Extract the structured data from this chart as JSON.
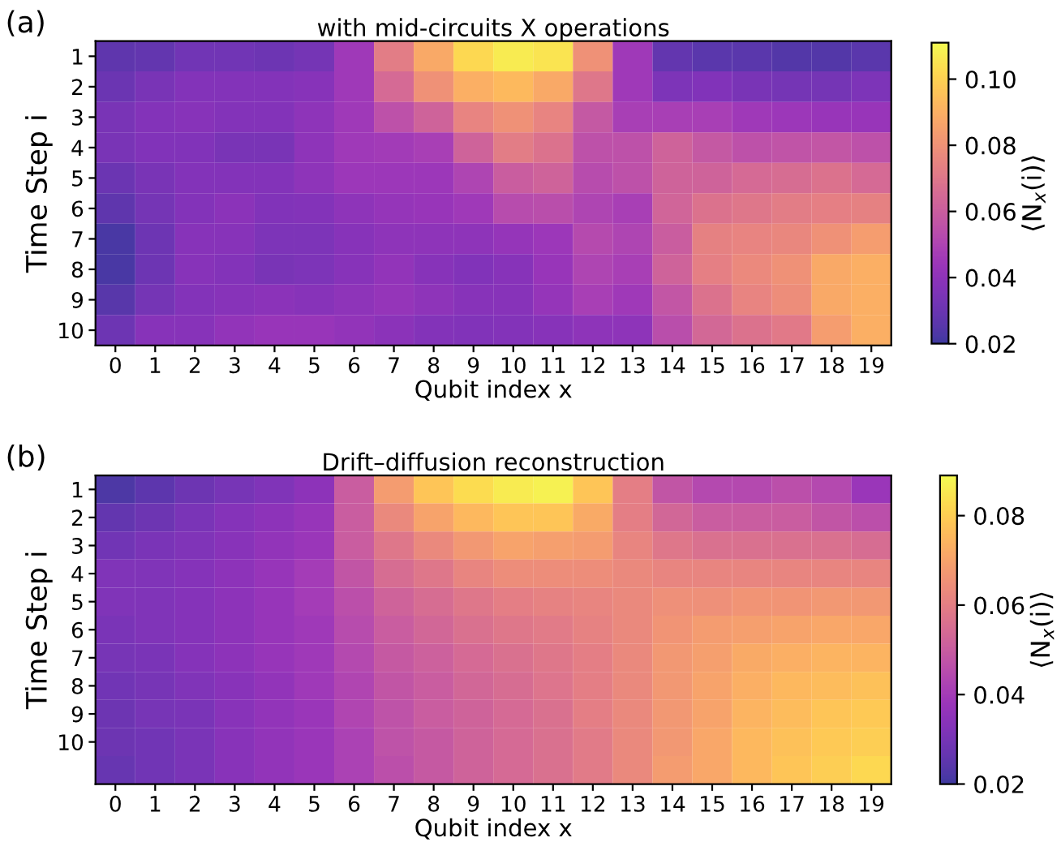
{
  "chart_data": [
    {
      "type": "heatmap",
      "title": "with mid-circuits X operations",
      "xlabel": "Qubit index x",
      "ylabel": "Time Step i",
      "clabel": "⟨N$_{x}$(i)⟩",
      "annotations": [
        "(a)"
      ],
      "categories": [
        "0",
        "1",
        "2",
        "3",
        "4",
        "5",
        "6",
        "7",
        "8",
        "9",
        "10",
        "11",
        "12",
        "13",
        "14",
        "15",
        "16",
        "17",
        "18",
        "19"
      ],
      "y_categories": [
        "1",
        "2",
        "3",
        "4",
        "5",
        "6",
        "7",
        "8",
        "9",
        "10"
      ],
      "clim": [
        0.02,
        0.111
      ],
      "cticks": [
        0.02,
        0.04,
        0.06,
        0.08,
        {
          "value": 0.1,
          "label": "0.10"
        }
      ],
      "cells": [
        [
          0.027,
          0.028,
          0.032,
          0.032,
          0.031,
          0.033,
          0.045,
          0.072,
          0.088,
          0.102,
          0.107,
          0.105,
          0.08,
          0.045,
          0.028,
          0.026,
          0.026,
          0.024,
          0.024,
          0.026
        ],
        [
          0.03,
          0.034,
          0.037,
          0.037,
          0.037,
          0.038,
          0.045,
          0.065,
          0.08,
          0.09,
          0.093,
          0.088,
          0.07,
          0.045,
          0.035,
          0.036,
          0.034,
          0.033,
          0.033,
          0.035
        ],
        [
          0.034,
          0.037,
          0.038,
          0.037,
          0.037,
          0.04,
          0.045,
          0.055,
          0.062,
          0.075,
          0.08,
          0.075,
          0.058,
          0.048,
          0.048,
          0.048,
          0.045,
          0.044,
          0.043,
          0.043
        ],
        [
          0.034,
          0.036,
          0.036,
          0.034,
          0.034,
          0.04,
          0.045,
          0.046,
          0.048,
          0.062,
          0.072,
          0.068,
          0.055,
          0.055,
          0.062,
          0.058,
          0.055,
          0.056,
          0.057,
          0.055
        ],
        [
          0.03,
          0.034,
          0.037,
          0.037,
          0.037,
          0.04,
          0.044,
          0.044,
          0.044,
          0.05,
          0.06,
          0.062,
          0.053,
          0.055,
          0.062,
          0.062,
          0.065,
          0.066,
          0.068,
          0.065
        ],
        [
          0.027,
          0.033,
          0.037,
          0.039,
          0.036,
          0.037,
          0.04,
          0.042,
          0.043,
          0.045,
          0.053,
          0.054,
          0.05,
          0.048,
          0.063,
          0.068,
          0.07,
          0.072,
          0.073,
          0.074
        ],
        [
          0.022,
          0.031,
          0.038,
          0.038,
          0.035,
          0.035,
          0.038,
          0.04,
          0.04,
          0.04,
          0.042,
          0.044,
          0.052,
          0.05,
          0.06,
          0.074,
          0.075,
          0.076,
          0.08,
          0.084
        ],
        [
          0.022,
          0.031,
          0.038,
          0.037,
          0.034,
          0.035,
          0.038,
          0.041,
          0.038,
          0.036,
          0.038,
          0.043,
          0.05,
          0.048,
          0.062,
          0.073,
          0.077,
          0.08,
          0.088,
          0.09
        ],
        [
          0.025,
          0.033,
          0.037,
          0.038,
          0.039,
          0.038,
          0.04,
          0.042,
          0.04,
          0.038,
          0.038,
          0.042,
          0.048,
          0.045,
          0.057,
          0.068,
          0.075,
          0.078,
          0.088,
          0.09
        ],
        [
          0.031,
          0.038,
          0.038,
          0.041,
          0.043,
          0.043,
          0.041,
          0.039,
          0.037,
          0.036,
          0.037,
          0.038,
          0.04,
          0.04,
          0.054,
          0.064,
          0.068,
          0.071,
          0.084,
          0.09
        ]
      ]
    },
    {
      "type": "heatmap",
      "title": "Drift–diffusion reconstruction",
      "xlabel": "Qubit index x",
      "ylabel": "Time Step i",
      "clabel": "⟨N$_{x}$(i)⟩",
      "annotations": [
        "(b)"
      ],
      "categories": [
        "0",
        "1",
        "2",
        "3",
        "4",
        "5",
        "6",
        "7",
        "8",
        "9",
        "10",
        "11",
        "12",
        "13",
        "14",
        "15",
        "16",
        "17",
        "18",
        "19"
      ],
      "y_categories": [
        "1",
        "2",
        "3",
        "4",
        "5",
        "6",
        "7",
        "8",
        "9",
        "10",
        null
      ],
      "clim": [
        0.02,
        0.089
      ],
      "cticks": [
        0.02,
        0.04,
        0.06,
        0.08
      ],
      "cells": [
        [
          0.022,
          0.025,
          0.028,
          0.03,
          0.032,
          0.035,
          0.05,
          0.068,
          0.078,
          0.083,
          0.086,
          0.087,
          0.078,
          0.06,
          0.048,
          0.044,
          0.044,
          0.046,
          0.044,
          0.038
        ],
        [
          0.026,
          0.028,
          0.031,
          0.033,
          0.035,
          0.037,
          0.05,
          0.063,
          0.07,
          0.075,
          0.078,
          0.078,
          0.072,
          0.06,
          0.053,
          0.05,
          0.05,
          0.05,
          0.048,
          0.046
        ],
        [
          0.029,
          0.031,
          0.032,
          0.034,
          0.036,
          0.038,
          0.05,
          0.058,
          0.063,
          0.067,
          0.07,
          0.069,
          0.068,
          0.062,
          0.058,
          0.056,
          0.056,
          0.056,
          0.056,
          0.055
        ],
        [
          0.032,
          0.032,
          0.033,
          0.035,
          0.037,
          0.04,
          0.048,
          0.055,
          0.058,
          0.062,
          0.064,
          0.064,
          0.064,
          0.063,
          0.062,
          0.062,
          0.062,
          0.062,
          0.062,
          0.062
        ],
        [
          0.032,
          0.032,
          0.033,
          0.035,
          0.037,
          0.04,
          0.046,
          0.052,
          0.055,
          0.058,
          0.06,
          0.061,
          0.062,
          0.063,
          0.065,
          0.065,
          0.066,
          0.066,
          0.067,
          0.067
        ],
        [
          0.031,
          0.032,
          0.033,
          0.035,
          0.037,
          0.039,
          0.045,
          0.05,
          0.053,
          0.056,
          0.058,
          0.059,
          0.061,
          0.063,
          0.066,
          0.068,
          0.069,
          0.07,
          0.071,
          0.071
        ],
        [
          0.03,
          0.031,
          0.033,
          0.035,
          0.037,
          0.039,
          0.044,
          0.049,
          0.051,
          0.054,
          0.056,
          0.058,
          0.06,
          0.063,
          0.067,
          0.069,
          0.072,
          0.073,
          0.074,
          0.074
        ],
        [
          0.029,
          0.03,
          0.032,
          0.034,
          0.036,
          0.039,
          0.043,
          0.048,
          0.05,
          0.053,
          0.055,
          0.057,
          0.06,
          0.063,
          0.067,
          0.07,
          0.073,
          0.075,
          0.076,
          0.077
        ],
        [
          0.028,
          0.03,
          0.031,
          0.034,
          0.036,
          0.038,
          0.043,
          0.047,
          0.05,
          0.052,
          0.054,
          0.056,
          0.06,
          0.063,
          0.067,
          0.07,
          0.074,
          0.076,
          0.078,
          0.079
        ],
        [
          0.028,
          0.029,
          0.031,
          0.034,
          0.036,
          0.038,
          0.042,
          0.047,
          0.049,
          0.052,
          0.054,
          0.056,
          0.059,
          0.063,
          0.067,
          0.071,
          0.075,
          0.077,
          0.079,
          0.08
        ],
        [
          0.027,
          0.029,
          0.031,
          0.034,
          0.036,
          0.038,
          0.042,
          0.046,
          0.049,
          0.052,
          0.054,
          0.056,
          0.059,
          0.063,
          0.068,
          0.071,
          0.075,
          0.078,
          0.08,
          0.082
        ]
      ]
    }
  ]
}
